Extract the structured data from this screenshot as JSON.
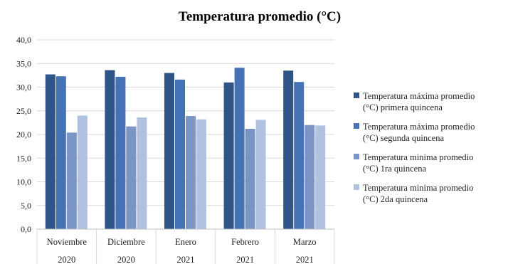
{
  "chart_data": {
    "type": "bar",
    "title": "Temperatura  promedio (°C)",
    "categories": [
      [
        "Noviembre",
        "2020"
      ],
      [
        "Diciembre",
        "2020"
      ],
      [
        "Enero",
        "2021"
      ],
      [
        "Febrero",
        "2021"
      ],
      [
        "Marzo",
        "2021"
      ]
    ],
    "series": [
      {
        "name": [
          "Temperatura máxima promedio",
          "(°C) primera quincena"
        ],
        "color": "#2e5488",
        "values": [
          32.7,
          33.6,
          33.0,
          31.0,
          33.5
        ]
      },
      {
        "name": [
          "Temperatura máxima promedio",
          "(°C) segunda quincena"
        ],
        "color": "#4472b4",
        "values": [
          32.3,
          32.2,
          31.6,
          34.1,
          31.1
        ]
      },
      {
        "name": [
          "Temperatura minima promedio",
          "(°C) 1ra quincena"
        ],
        "color": "#7b95c4",
        "values": [
          20.4,
          21.7,
          23.9,
          21.2,
          22.0
        ]
      },
      {
        "name": [
          "Temperatura minima promedio",
          "(°C) 2da quincena"
        ],
        "color": "#b0c2e0",
        "values": [
          24.0,
          23.6,
          23.2,
          23.1,
          21.9
        ]
      }
    ],
    "ylim": [
      0,
      40
    ],
    "yticks": [
      "0,0",
      "5,0",
      "10,0",
      "15,0",
      "20,0",
      "25,0",
      "30,0",
      "35,0",
      "40,0"
    ],
    "grid": true,
    "legend": "right"
  }
}
